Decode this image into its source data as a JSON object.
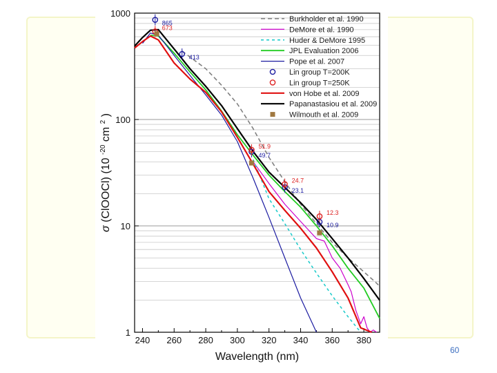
{
  "page_number": "60",
  "chart_data": {
    "type": "line",
    "xlabel": "Wavelength (nm)",
    "ylabel_parts": [
      "σ",
      "(ClOOCl) (10",
      "-20",
      " cm",
      "2",
      ")"
    ],
    "xlim": [
      235,
      390
    ],
    "ylim": [
      1,
      1000
    ],
    "y_scale": "log",
    "x_ticks": [
      240,
      260,
      280,
      300,
      320,
      340,
      360,
      380
    ],
    "y_ticks": [
      {
        "value": 1,
        "label": "1"
      },
      {
        "value": 10,
        "label": "10"
      },
      {
        "value": 100,
        "label": "100"
      },
      {
        "value": 1000,
        "label": "1000"
      }
    ],
    "grid": "horizontal",
    "legend_position": "top-right",
    "series": [
      {
        "name": "Burkholder et al. 1990",
        "kind": "line",
        "color": "#808080",
        "dash": "6,4",
        "width": 1.6,
        "points": [
          [
            265,
            440
          ],
          [
            280,
            300
          ],
          [
            290,
            210
          ],
          [
            300,
            140
          ],
          [
            310,
            82
          ],
          [
            320,
            44
          ],
          [
            330,
            26
          ],
          [
            340,
            16
          ],
          [
            350,
            10.5
          ],
          [
            360,
            7
          ],
          [
            370,
            5
          ],
          [
            380,
            3.7
          ],
          [
            388,
            2.9
          ],
          [
            390,
            2.7
          ]
        ]
      },
      {
        "name": "DeMore et al. 1990",
        "kind": "line",
        "color": "#cc00cc",
        "dash": "",
        "width": 1.2,
        "points": [
          [
            310,
            40
          ],
          [
            320,
            25
          ],
          [
            330,
            16
          ],
          [
            340,
            11
          ],
          [
            350,
            7.6
          ],
          [
            355,
            7.2
          ],
          [
            360,
            5
          ],
          [
            365,
            4
          ],
          [
            370,
            2.8
          ],
          [
            372,
            2.4
          ],
          [
            375,
            1.6
          ],
          [
            378,
            1.2
          ],
          [
            380,
            1.4
          ],
          [
            382,
            1.1
          ],
          [
            384,
            1.0
          ],
          [
            386,
            1.05
          ],
          [
            388,
            1.0
          ]
        ]
      },
      {
        "name": "Huder & DeMore 1995",
        "kind": "line",
        "color": "#22cccc",
        "dash": "4,4",
        "width": 1.6,
        "points": [
          [
            310,
            42
          ],
          [
            320,
            18
          ],
          [
            330,
            10.5
          ],
          [
            340,
            6
          ],
          [
            350,
            3.6
          ],
          [
            360,
            2.2
          ],
          [
            370,
            1.4
          ],
          [
            378,
            1.0
          ]
        ]
      },
      {
        "name": "JPL Evaluation 2006",
        "kind": "line",
        "color": "#22cc22",
        "dash": "",
        "width": 1.8,
        "points": [
          [
            245,
            620
          ],
          [
            250,
            610
          ],
          [
            260,
            420
          ],
          [
            270,
            280
          ],
          [
            280,
            190
          ],
          [
            290,
            120
          ],
          [
            300,
            72
          ],
          [
            310,
            46
          ],
          [
            320,
            30
          ],
          [
            330,
            21
          ],
          [
            340,
            15
          ],
          [
            350,
            10
          ],
          [
            360,
            6.5
          ],
          [
            370,
            4
          ],
          [
            380,
            2.6
          ],
          [
            390,
            1.35
          ]
        ]
      },
      {
        "name": "Pope et al. 2007",
        "kind": "line",
        "color": "#1a1aa0",
        "dash": "",
        "width": 1.2,
        "points": [
          [
            240,
            520
          ],
          [
            245,
            650
          ],
          [
            250,
            620
          ],
          [
            260,
            400
          ],
          [
            270,
            260
          ],
          [
            280,
            170
          ],
          [
            290,
            110
          ],
          [
            300,
            62
          ],
          [
            310,
            28
          ],
          [
            320,
            12
          ],
          [
            330,
            5
          ],
          [
            340,
            2.1
          ],
          [
            350,
            1.0
          ]
        ]
      },
      {
        "name": "Lin group T=200K",
        "kind": "marker",
        "marker": "circle",
        "color": "#1a1aa0",
        "points": [
          [
            248,
            865
          ],
          [
            265,
            413
          ],
          [
            309,
            49.7
          ],
          [
            330,
            23.1
          ],
          [
            352,
            10.9
          ]
        ],
        "labels": [
          "865",
          "413",
          "49.7",
          "23.1",
          "10.9"
        ]
      },
      {
        "name": "Lin group T=250K",
        "kind": "marker",
        "marker": "circle",
        "color": "#dd2222",
        "points": [
          [
            248,
            673
          ],
          [
            309,
            51.9
          ],
          [
            330,
            24.7
          ],
          [
            352,
            12.3
          ]
        ],
        "labels": [
          "673",
          "51.9",
          "24.7",
          "12.3"
        ]
      },
      {
        "name": "von Hobe et al. 2009",
        "kind": "line",
        "color": "#e01010",
        "dash": "",
        "width": 2.2,
        "points": [
          [
            235,
            470
          ],
          [
            240,
            540
          ],
          [
            245,
            610
          ],
          [
            250,
            560
          ],
          [
            260,
            340
          ],
          [
            270,
            240
          ],
          [
            280,
            180
          ],
          [
            290,
            118
          ],
          [
            300,
            68
          ],
          [
            310,
            38
          ],
          [
            320,
            21
          ],
          [
            330,
            14
          ],
          [
            340,
            9.5
          ],
          [
            350,
            6.2
          ],
          [
            360,
            3.7
          ],
          [
            370,
            2.1
          ],
          [
            378,
            1.1
          ],
          [
            385,
            1.0
          ]
        ]
      },
      {
        "name": "Papanastasiou et al. 2009",
        "kind": "line",
        "color": "#000000",
        "dash": "",
        "width": 2.2,
        "points": [
          [
            235,
            490
          ],
          [
            240,
            590
          ],
          [
            245,
            690
          ],
          [
            250,
            700
          ],
          [
            260,
            460
          ],
          [
            270,
            300
          ],
          [
            280,
            205
          ],
          [
            290,
            135
          ],
          [
            300,
            82
          ],
          [
            310,
            50
          ],
          [
            320,
            32
          ],
          [
            330,
            23
          ],
          [
            340,
            16.5
          ],
          [
            350,
            11.5
          ],
          [
            360,
            7.6
          ],
          [
            370,
            5
          ],
          [
            380,
            3.2
          ],
          [
            390,
            2.0
          ]
        ]
      },
      {
        "name": "Wilmouth et al. 2009",
        "kind": "marker",
        "marker": "square",
        "color": "#a07840",
        "points": [
          [
            249,
            640
          ],
          [
            309,
            39
          ],
          [
            352,
            8.6
          ]
        ],
        "labels": []
      }
    ]
  }
}
